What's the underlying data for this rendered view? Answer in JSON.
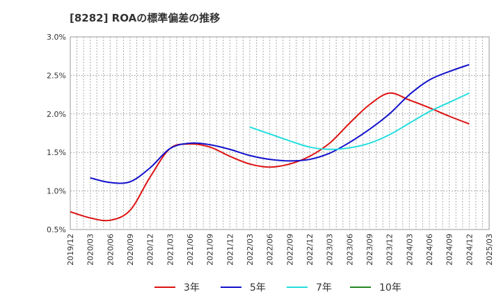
{
  "chart_data": {
    "type": "line",
    "title": "[8282]  ROAの標準偏差の推移",
    "xlabel": "",
    "ylabel": "",
    "ylim": [
      0.5,
      3.0
    ],
    "y_ticks": [
      "0.5%",
      "1.0%",
      "1.5%",
      "2.0%",
      "2.5%",
      "3.0%"
    ],
    "x_ticks": [
      "2019/12",
      "2020/03",
      "2020/06",
      "2020/09",
      "2020/12",
      "2021/03",
      "2021/06",
      "2021/09",
      "2021/12",
      "2022/03",
      "2022/06",
      "2022/09",
      "2022/12",
      "2023/03",
      "2023/06",
      "2023/09",
      "2023/12",
      "2024/03",
      "2024/06",
      "2024/09",
      "2024/12",
      "2025/03"
    ],
    "grid": true,
    "legend_position": "bottom",
    "series": [
      {
        "name": "3年",
        "color": "#dd1111",
        "values": [
          0.73,
          0.65,
          0.62,
          0.75,
          1.18,
          1.55,
          1.61,
          1.57,
          1.45,
          1.35,
          1.31,
          1.35,
          1.45,
          1.62,
          1.88,
          2.12,
          2.27,
          2.18,
          2.08,
          1.97,
          1.87,
          null
        ]
      },
      {
        "name": "5年",
        "color": "#1111cc",
        "values": [
          null,
          1.17,
          1.11,
          1.12,
          1.3,
          1.55,
          1.62,
          1.6,
          1.54,
          1.46,
          1.41,
          1.39,
          1.41,
          1.49,
          1.63,
          1.8,
          2.0,
          2.25,
          2.44,
          2.55,
          2.64,
          null
        ]
      },
      {
        "name": "7年",
        "color": "#22dddd",
        "values": [
          null,
          null,
          null,
          null,
          null,
          null,
          null,
          null,
          null,
          1.83,
          1.74,
          1.65,
          1.57,
          1.54,
          1.56,
          1.62,
          1.73,
          1.88,
          2.03,
          2.15,
          2.27,
          null
        ]
      },
      {
        "name": "10年",
        "color": "#228822",
        "values": [
          null,
          null,
          null,
          null,
          null,
          null,
          null,
          null,
          null,
          null,
          null,
          null,
          null,
          null,
          null,
          null,
          null,
          null,
          null,
          null,
          null,
          null
        ]
      }
    ]
  }
}
